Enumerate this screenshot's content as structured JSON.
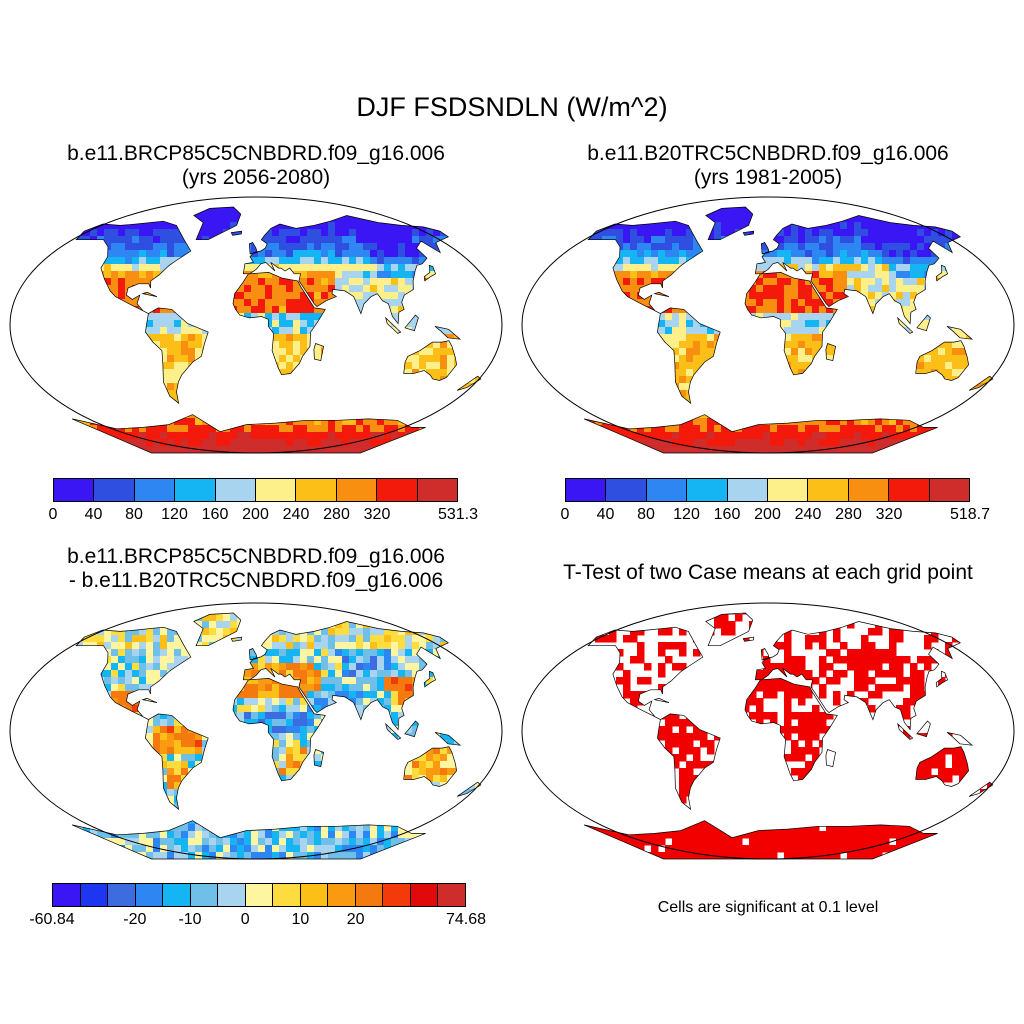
{
  "title": "DJF FSDSNDLN (W/m^2)",
  "panels": [
    {
      "line1": "b.e11.BRCP85C5CNBDRD.f09_g16.006",
      "line2": "(yrs 2056-2080)",
      "fill": "field_future"
    },
    {
      "line1": "b.e11.B20TRC5CNBDRD.f09_g16.006",
      "line2": "(yrs 1981-2005)",
      "fill": "field_past"
    },
    {
      "line1": "b.e11.BRCP85C5CNBDRD.f09_g16.006",
      "line2": "- b.e11.B20TRC5CNBDRD.f09_g16.006",
      "fill": "field_diff"
    },
    {
      "line1": "T-Test of two Case means at each grid point",
      "line2": "",
      "fill": "significance"
    }
  ],
  "colorbars": [
    {
      "colors": [
        "#3b16f5",
        "#2f4fe0",
        "#2e86f2",
        "#14b5f2",
        "#a8d4ef",
        "#fdf08a",
        "#fbbf18",
        "#f88f10",
        "#f31a0b",
        "#cf2c2c"
      ],
      "tick_labels": [
        "0",
        "40",
        "80",
        "120",
        "160",
        "200",
        "240",
        "280",
        "320",
        "531.3"
      ],
      "tick_positions": [
        0,
        1,
        2,
        3,
        4,
        5,
        6,
        7,
        8,
        10
      ]
    },
    {
      "colors": [
        "#3b16f5",
        "#2f4fe0",
        "#2e86f2",
        "#14b5f2",
        "#a8d4ef",
        "#fdf08a",
        "#fbbf18",
        "#f88f10",
        "#f31a0b",
        "#cf2c2c"
      ],
      "tick_labels": [
        "0",
        "40",
        "80",
        "120",
        "160",
        "200",
        "240",
        "280",
        "320",
        "518.7"
      ],
      "tick_positions": [
        0,
        1,
        2,
        3,
        4,
        5,
        6,
        7,
        8,
        10
      ]
    },
    {
      "colors": [
        "#3b16f5",
        "#1f36f0",
        "#3d6ce0",
        "#2e86f2",
        "#14b5f2",
        "#6fbfe8",
        "#a8d4ef",
        "#fdf5a0",
        "#fddc40",
        "#fbbf18",
        "#f99a10",
        "#f47a10",
        "#f33a0b",
        "#e00a0a",
        "#cf2c2c"
      ],
      "tick_labels": [
        "-60.84",
        "-20",
        "-10",
        "0",
        "10",
        "20",
        "74.68"
      ],
      "tick_positions": [
        0,
        3,
        5,
        7,
        9,
        11,
        15
      ]
    }
  ],
  "significance_note": "Cells are significant at 0.1 level",
  "significance_color": "#f20000"
}
